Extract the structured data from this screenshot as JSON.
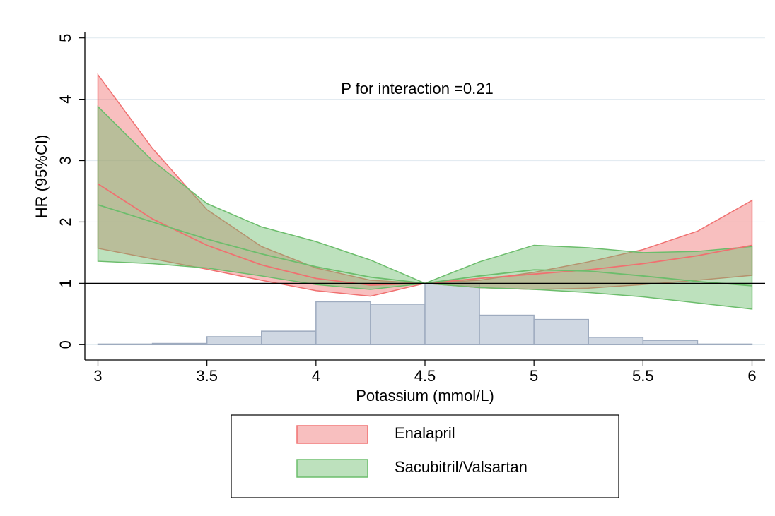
{
  "chart_data": {
    "type": "line",
    "annotation": "P for interaction =0.21",
    "x_label": "Potassium (mmol/L)",
    "y_label": "HR (95%CI)",
    "x": [
      3,
      3.25,
      3.5,
      3.75,
      4,
      4.25,
      4.5,
      4.75,
      5,
      5.25,
      5.5,
      5.75,
      6
    ],
    "series": [
      {
        "name": "Enalapril",
        "color": "#f07070",
        "values": [
          2.62,
          2.05,
          1.62,
          1.3,
          1.08,
          0.97,
          1,
          1.08,
          1.15,
          1.22,
          1.32,
          1.45,
          1.62
        ],
        "upper": [
          4.4,
          3.2,
          2.2,
          1.6,
          1.25,
          1.05,
          1,
          1.05,
          1.18,
          1.35,
          1.55,
          1.85,
          2.35
        ],
        "lower": [
          1.57,
          1.4,
          1.23,
          1.05,
          0.88,
          0.79,
          1,
          0.93,
          0.9,
          0.92,
          0.98,
          1.05,
          1.13
        ]
      },
      {
        "name": "Sacubitril/Valsartan",
        "color": "#6cbd6c",
        "values": [
          2.28,
          2.0,
          1.72,
          1.48,
          1.27,
          1.1,
          1,
          1.12,
          1.22,
          1.2,
          1.12,
          1.03,
          0.96
        ],
        "upper": [
          3.88,
          3.0,
          2.3,
          1.92,
          1.68,
          1.38,
          1,
          1.35,
          1.62,
          1.58,
          1.5,
          1.52,
          1.6
        ],
        "lower": [
          1.36,
          1.32,
          1.25,
          1.12,
          0.98,
          0.9,
          1,
          0.93,
          0.9,
          0.85,
          0.78,
          0.68,
          0.58
        ]
      }
    ],
    "histogram": {
      "color": "#cfd7e2",
      "bins": [
        3,
        3.25,
        3.5,
        3.75,
        4,
        4.25,
        4.5,
        4.75,
        5,
        5.25,
        5.5,
        5.75,
        6
      ],
      "counts": [
        0.01,
        0.02,
        0.13,
        0.22,
        0.7,
        0.66,
        1,
        0.48,
        0.41,
        0.12,
        0.07,
        0.01
      ]
    },
    "refline": 1,
    "xlim": [
      2.94,
      6.06
    ],
    "ylim": [
      -0.25,
      5.1
    ],
    "xticks": [
      3,
      3.5,
      4,
      4.5,
      5,
      5.5,
      6
    ],
    "yticks": [
      0,
      1,
      2,
      3,
      4,
      5
    ],
    "grid": true,
    "legend": "bottom"
  }
}
